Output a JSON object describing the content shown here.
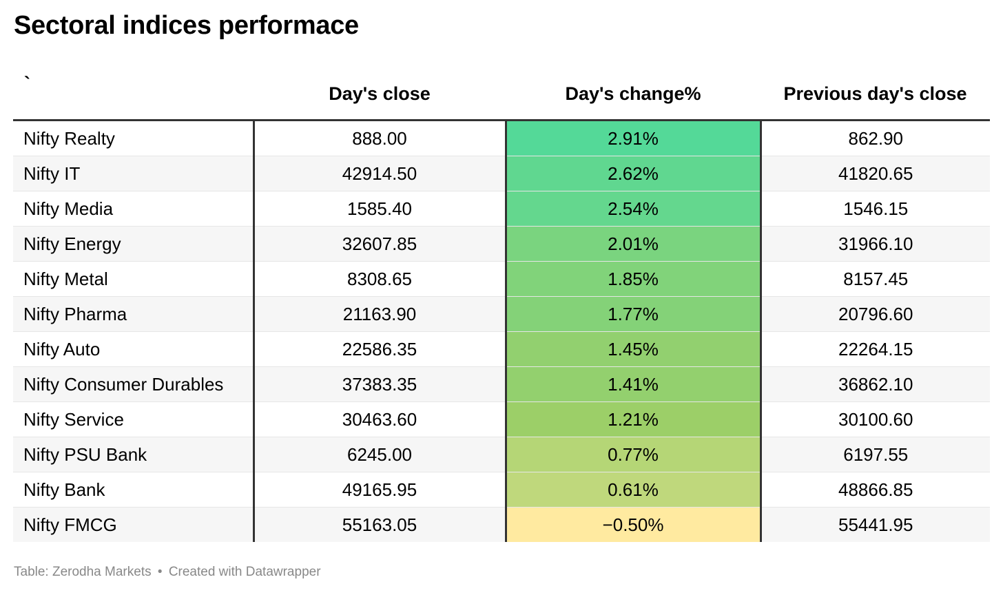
{
  "title": "Sectoral indices performace",
  "source_label": "Table: Zerodha Markets",
  "separator": "•",
  "credit": "Created with Datawrapper",
  "chart_data": {
    "type": "table",
    "title": "Sectoral indices performace",
    "columns": [
      "`",
      "Day's close",
      "Day's change%",
      "Previous day's close"
    ],
    "rows": [
      {
        "name": "Nifty Realty",
        "close": "888.00",
        "change": "2.91%",
        "change_value": 2.91,
        "prev": "862.90"
      },
      {
        "name": "Nifty IT",
        "close": "42914.50",
        "change": "2.62%",
        "change_value": 2.62,
        "prev": "41820.65"
      },
      {
        "name": "Nifty Media",
        "close": "1585.40",
        "change": "2.54%",
        "change_value": 2.54,
        "prev": "1546.15"
      },
      {
        "name": "Nifty Energy",
        "close": "32607.85",
        "change": "2.01%",
        "change_value": 2.01,
        "prev": "31966.10"
      },
      {
        "name": "Nifty Metal",
        "close": "8308.65",
        "change": "1.85%",
        "change_value": 1.85,
        "prev": "8157.45"
      },
      {
        "name": "Nifty Pharma",
        "close": "21163.90",
        "change": "1.77%",
        "change_value": 1.77,
        "prev": "20796.60"
      },
      {
        "name": "Nifty Auto",
        "close": "22586.35",
        "change": "1.45%",
        "change_value": 1.45,
        "prev": "22264.15"
      },
      {
        "name": "Nifty Consumer Durables",
        "close": "37383.35",
        "change": "1.41%",
        "change_value": 1.41,
        "prev": "36862.10"
      },
      {
        "name": "Nifty Service",
        "close": "30463.60",
        "change": "1.21%",
        "change_value": 1.21,
        "prev": "30100.60"
      },
      {
        "name": "Nifty PSU Bank",
        "close": "6245.00",
        "change": "0.77%",
        "change_value": 0.77,
        "prev": "6197.55"
      },
      {
        "name": "Nifty Bank",
        "close": "49165.95",
        "change": "0.61%",
        "change_value": 0.61,
        "prev": "48866.85"
      },
      {
        "name": "Nifty FMCG",
        "close": "55163.05",
        "change": "−0.50%",
        "change_value": -0.5,
        "prev": "55441.95"
      }
    ],
    "change_colors": {
      "high": "#54d998",
      "mid": "#9ccf68",
      "low": "#ffeaa0"
    }
  }
}
